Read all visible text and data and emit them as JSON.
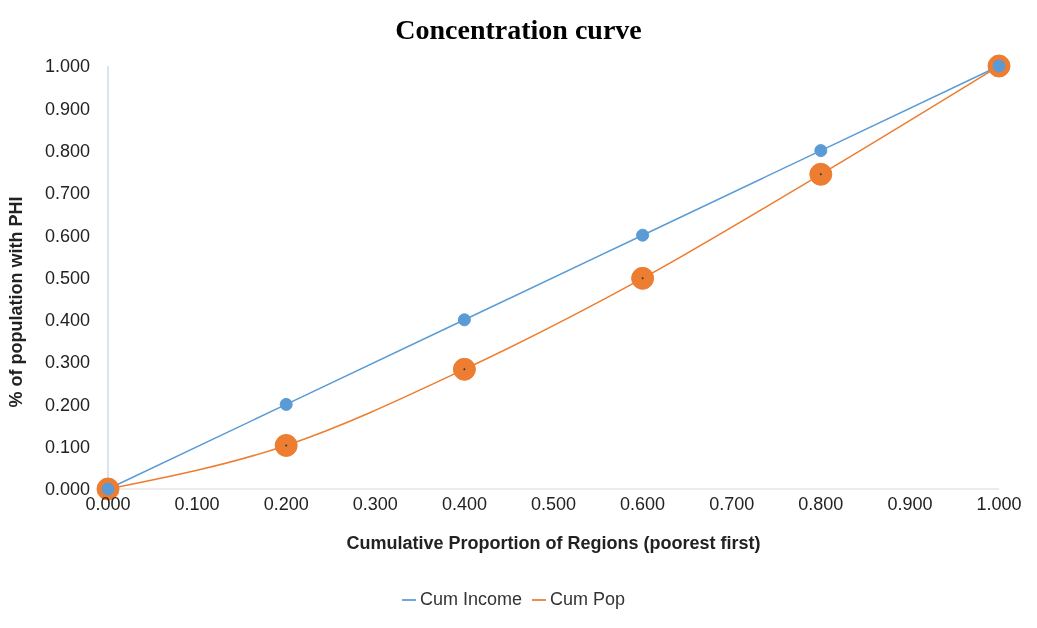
{
  "chart_data": {
    "type": "line",
    "title": "Concentration curve",
    "xlabel": "Cumulative Proportion of Regions (poorest first)",
    "ylabel": "% of population with PHI",
    "x": [
      0,
      0.2,
      0.4,
      0.6,
      0.8,
      1
    ],
    "series": [
      {
        "name": "Cum Income",
        "color": "#5b9bd5",
        "values": [
          0,
          0.2,
          0.4,
          0.6,
          0.8,
          1
        ]
      },
      {
        "name": "Cum Pop",
        "color": "#ed7d31",
        "values": [
          0,
          0.103,
          0.283,
          0.498,
          0.744,
          1
        ]
      }
    ],
    "xlim": [
      0,
      1
    ],
    "ylim": [
      0,
      1
    ],
    "xticks": [
      {
        "value": 0,
        "label": "0.000"
      },
      {
        "value": 0.1,
        "label": "0.100"
      },
      {
        "value": 0.2,
        "label": "0.200"
      },
      {
        "value": 0.3,
        "label": "0.300"
      },
      {
        "value": 0.4,
        "label": "0.400"
      },
      {
        "value": 0.5,
        "label": "0.500"
      },
      {
        "value": 0.6,
        "label": "0.600"
      },
      {
        "value": 0.7,
        "label": "0.700"
      },
      {
        "value": 0.8,
        "label": "0.800"
      },
      {
        "value": 0.9,
        "label": "0.900"
      },
      {
        "value": 1,
        "label": "1.000"
      }
    ],
    "yticks": [
      {
        "value": 0,
        "label": "0.000"
      },
      {
        "value": 0.1,
        "label": "0.100"
      },
      {
        "value": 0.2,
        "label": "0.200"
      },
      {
        "value": 0.3,
        "label": "0.300"
      },
      {
        "value": 0.4,
        "label": "0.400"
      },
      {
        "value": 0.5,
        "label": "0.500"
      },
      {
        "value": 0.6,
        "label": "0.600"
      },
      {
        "value": 0.7,
        "label": "0.700"
      },
      {
        "value": 0.8,
        "label": "0.800"
      },
      {
        "value": 0.9,
        "label": "0.900"
      },
      {
        "value": 1,
        "label": "1.000"
      }
    ],
    "grid": false,
    "legend": "bottom",
    "marker": "circle",
    "line_style": "solid"
  }
}
